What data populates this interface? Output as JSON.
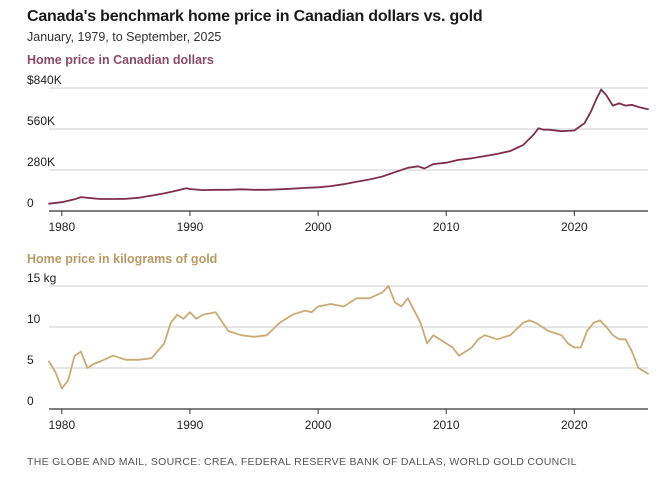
{
  "title": "Canada's benchmark home price in Canadian dollars vs. gold",
  "subtitle": "January, 1979, to September, 2025",
  "source": "THE GLOBE AND MAIL, SOURCE: CREA, FEDERAL RESERVE BANK OF DALLAS, WORLD GOLD COUNCIL",
  "colors": {
    "cad": "#7d2f4e",
    "gold": "#c8ab75",
    "grid": "#cccccc",
    "axis": "#333333"
  },
  "chart_data": [
    {
      "type": "line",
      "title": "Home price in Canadian dollars",
      "xlim": [
        1979,
        2025.75
      ],
      "ylim": [
        0,
        840000
      ],
      "x_ticks": [
        1980,
        1990,
        2000,
        2010,
        2020
      ],
      "x_tick_labels": [
        "1980",
        "1990",
        "2000",
        "2010",
        "2020"
      ],
      "y_ticks": [
        0,
        280000,
        560000,
        840000
      ],
      "y_tick_labels": [
        "0",
        "280K",
        "560K",
        "$840K"
      ],
      "grid": true,
      "series": [
        {
          "x": [
            1979,
            1980,
            1981,
            1981.5,
            1982,
            1983,
            1984,
            1985,
            1986,
            1987,
            1988,
            1989,
            1989.7,
            1990,
            1991,
            1992,
            1993,
            1994,
            1995,
            1996,
            1997,
            1998,
            1999,
            2000,
            2001,
            2002,
            2003,
            2004,
            2005,
            2006,
            2007,
            2007.8,
            2008.3,
            2009,
            2010,
            2011,
            2012,
            2013,
            2014,
            2015,
            2016,
            2016.8,
            2017.2,
            2017.6,
            2018,
            2019,
            2020,
            2020.8,
            2021.3,
            2021.7,
            2022.1,
            2022.5,
            2023,
            2023.5,
            2024,
            2024.5,
            2025,
            2025.75
          ],
          "y": [
            50000,
            60000,
            80000,
            95000,
            90000,
            82000,
            82000,
            83000,
            90000,
            105000,
            120000,
            140000,
            155000,
            150000,
            143000,
            145000,
            145000,
            148000,
            145000,
            145000,
            148000,
            152000,
            158000,
            162000,
            170000,
            183000,
            200000,
            215000,
            235000,
            265000,
            295000,
            305000,
            290000,
            320000,
            330000,
            350000,
            360000,
            375000,
            390000,
            410000,
            450000,
            520000,
            565000,
            555000,
            555000,
            545000,
            550000,
            600000,
            680000,
            760000,
            830000,
            790000,
            720000,
            735000,
            720000,
            725000,
            710000,
            695000
          ]
        }
      ]
    },
    {
      "type": "line",
      "title": "Home price in kilograms of gold",
      "xlim": [
        1979,
        2025.75
      ],
      "ylim": [
        0,
        15
      ],
      "x_ticks": [
        1980,
        1990,
        2000,
        2010,
        2020
      ],
      "x_tick_labels": [
        "1980",
        "1990",
        "2000",
        "2010",
        "2020"
      ],
      "y_ticks": [
        0,
        5,
        10,
        15
      ],
      "y_tick_labels": [
        "0",
        "5",
        "10",
        "15 kg"
      ],
      "grid": true,
      "series": [
        {
          "x": [
            1979,
            1979.5,
            1980,
            1980.5,
            1981,
            1981.5,
            1982,
            1982.5,
            1983,
            1984,
            1985,
            1986,
            1987,
            1988,
            1988.5,
            1989,
            1989.5,
            1990,
            1990.5,
            1991,
            1992,
            1993,
            1994,
            1995,
            1996,
            1997,
            1997.5,
            1998,
            1999,
            1999.5,
            2000,
            2001,
            2002,
            2003,
            2004,
            2005,
            2005.5,
            2006,
            2006.5,
            2007,
            2007.5,
            2008,
            2008.5,
            2009,
            2010,
            2010.5,
            2011,
            2011.5,
            2012,
            2012.5,
            2013,
            2014,
            2015,
            2016,
            2016.5,
            2017,
            2018,
            2019,
            2019.5,
            2020,
            2020.5,
            2021,
            2021.5,
            2022,
            2022.5,
            2023,
            2023.5,
            2024,
            2024.5,
            2025,
            2025.75
          ],
          "y": [
            5.8,
            4.5,
            2.5,
            3.5,
            6.5,
            7.0,
            5.0,
            5.5,
            5.8,
            6.5,
            6.0,
            6.0,
            6.2,
            8.0,
            10.5,
            11.5,
            11.0,
            11.8,
            11.0,
            11.5,
            11.8,
            9.5,
            9.0,
            8.8,
            9.0,
            10.5,
            11.0,
            11.5,
            12.0,
            11.8,
            12.5,
            12.8,
            12.5,
            13.5,
            13.5,
            14.2,
            15.0,
            13.0,
            12.5,
            13.5,
            12.0,
            10.5,
            8.0,
            9.0,
            8.0,
            7.5,
            6.5,
            7.0,
            7.5,
            8.5,
            9.0,
            8.5,
            9.0,
            10.5,
            10.8,
            10.5,
            9.5,
            9.0,
            8.0,
            7.5,
            7.5,
            9.5,
            10.5,
            10.8,
            10.0,
            9.0,
            8.5,
            8.5,
            7.0,
            5.0,
            4.3
          ]
        }
      ]
    }
  ]
}
